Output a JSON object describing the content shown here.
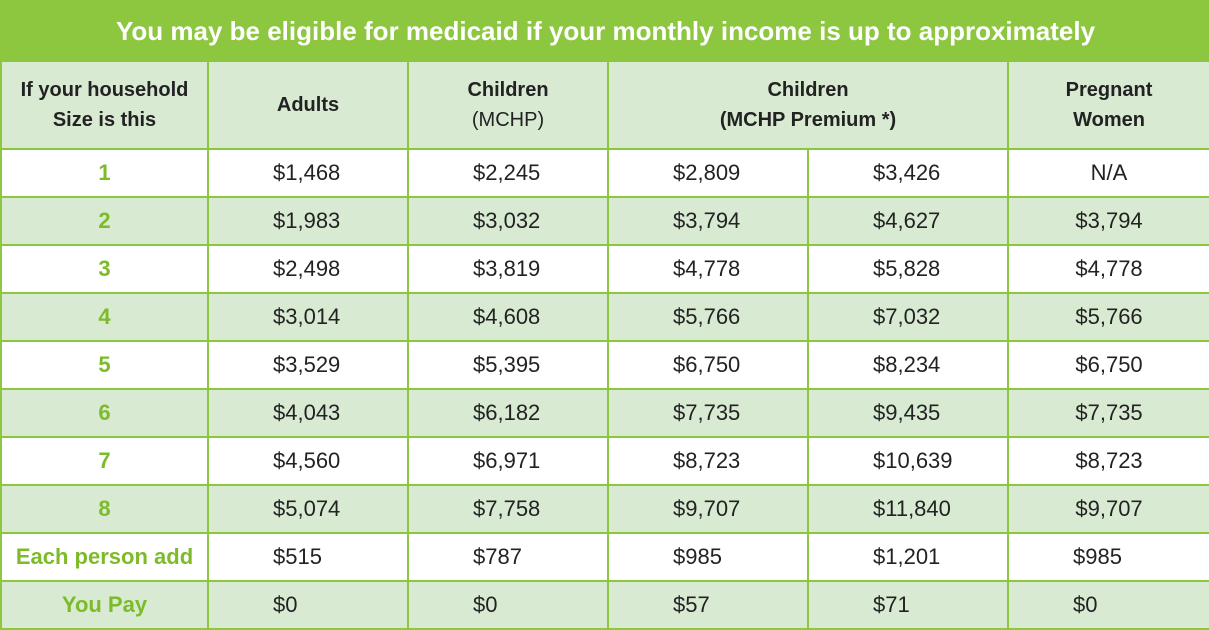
{
  "title": "You may be eligible for medicaid if your monthly income is up to approximately",
  "headers": {
    "household": [
      "If your household",
      "Size is this"
    ],
    "adults": "Adults",
    "children": [
      "Children",
      "(MCHP)"
    ],
    "children_premium": [
      "Children",
      "(MCHP Premium *)"
    ],
    "pregnant": [
      "Pregnant",
      "Women"
    ]
  },
  "rows": [
    {
      "size": "1",
      "adults": "$1,468",
      "children": "$2,245",
      "premium_a": "$2,809",
      "premium_b": "$3,426",
      "pregnant": "N/A"
    },
    {
      "size": "2",
      "adults": "$1,983",
      "children": "$3,032",
      "premium_a": "$3,794",
      "premium_b": "$4,627",
      "pregnant": "$3,794"
    },
    {
      "size": "3",
      "adults": "$2,498",
      "children": "$3,819",
      "premium_a": "$4,778",
      "premium_b": "$5,828",
      "pregnant": "$4,778"
    },
    {
      "size": "4",
      "adults": "$3,014",
      "children": "$4,608",
      "premium_a": "$5,766",
      "premium_b": "$7,032",
      "pregnant": "$5,766"
    },
    {
      "size": "5",
      "adults": "$3,529",
      "children": "$5,395",
      "premium_a": "$6,750",
      "premium_b": "$8,234",
      "pregnant": "$6,750"
    },
    {
      "size": "6",
      "adults": "$4,043",
      "children": "$6,182",
      "premium_a": "$7,735",
      "premium_b": "$9,435",
      "pregnant": "$7,735"
    },
    {
      "size": "7",
      "adults": "$4,560",
      "children": "$6,971",
      "premium_a": "$8,723",
      "premium_b": "$10,639",
      "pregnant": "$8,723"
    },
    {
      "size": "8",
      "adults": "$5,074",
      "children": "$7,758",
      "premium_a": "$9,707",
      "premium_b": "$11,840",
      "pregnant": "$9,707"
    }
  ],
  "each_person": {
    "label": "Each person add",
    "adults": "$515",
    "children": "$787",
    "premium_a": "$985",
    "premium_b": "$1,201",
    "pregnant": "$985"
  },
  "you_pay": {
    "label": "You Pay",
    "adults": "$0",
    "children": "$0",
    "premium_a": "$57",
    "premium_b": "$71",
    "pregnant": "$0"
  },
  "colors": {
    "accent": "#8dc63f",
    "row_alt": "#d9ead3",
    "size_text": "#7dbb2a"
  }
}
